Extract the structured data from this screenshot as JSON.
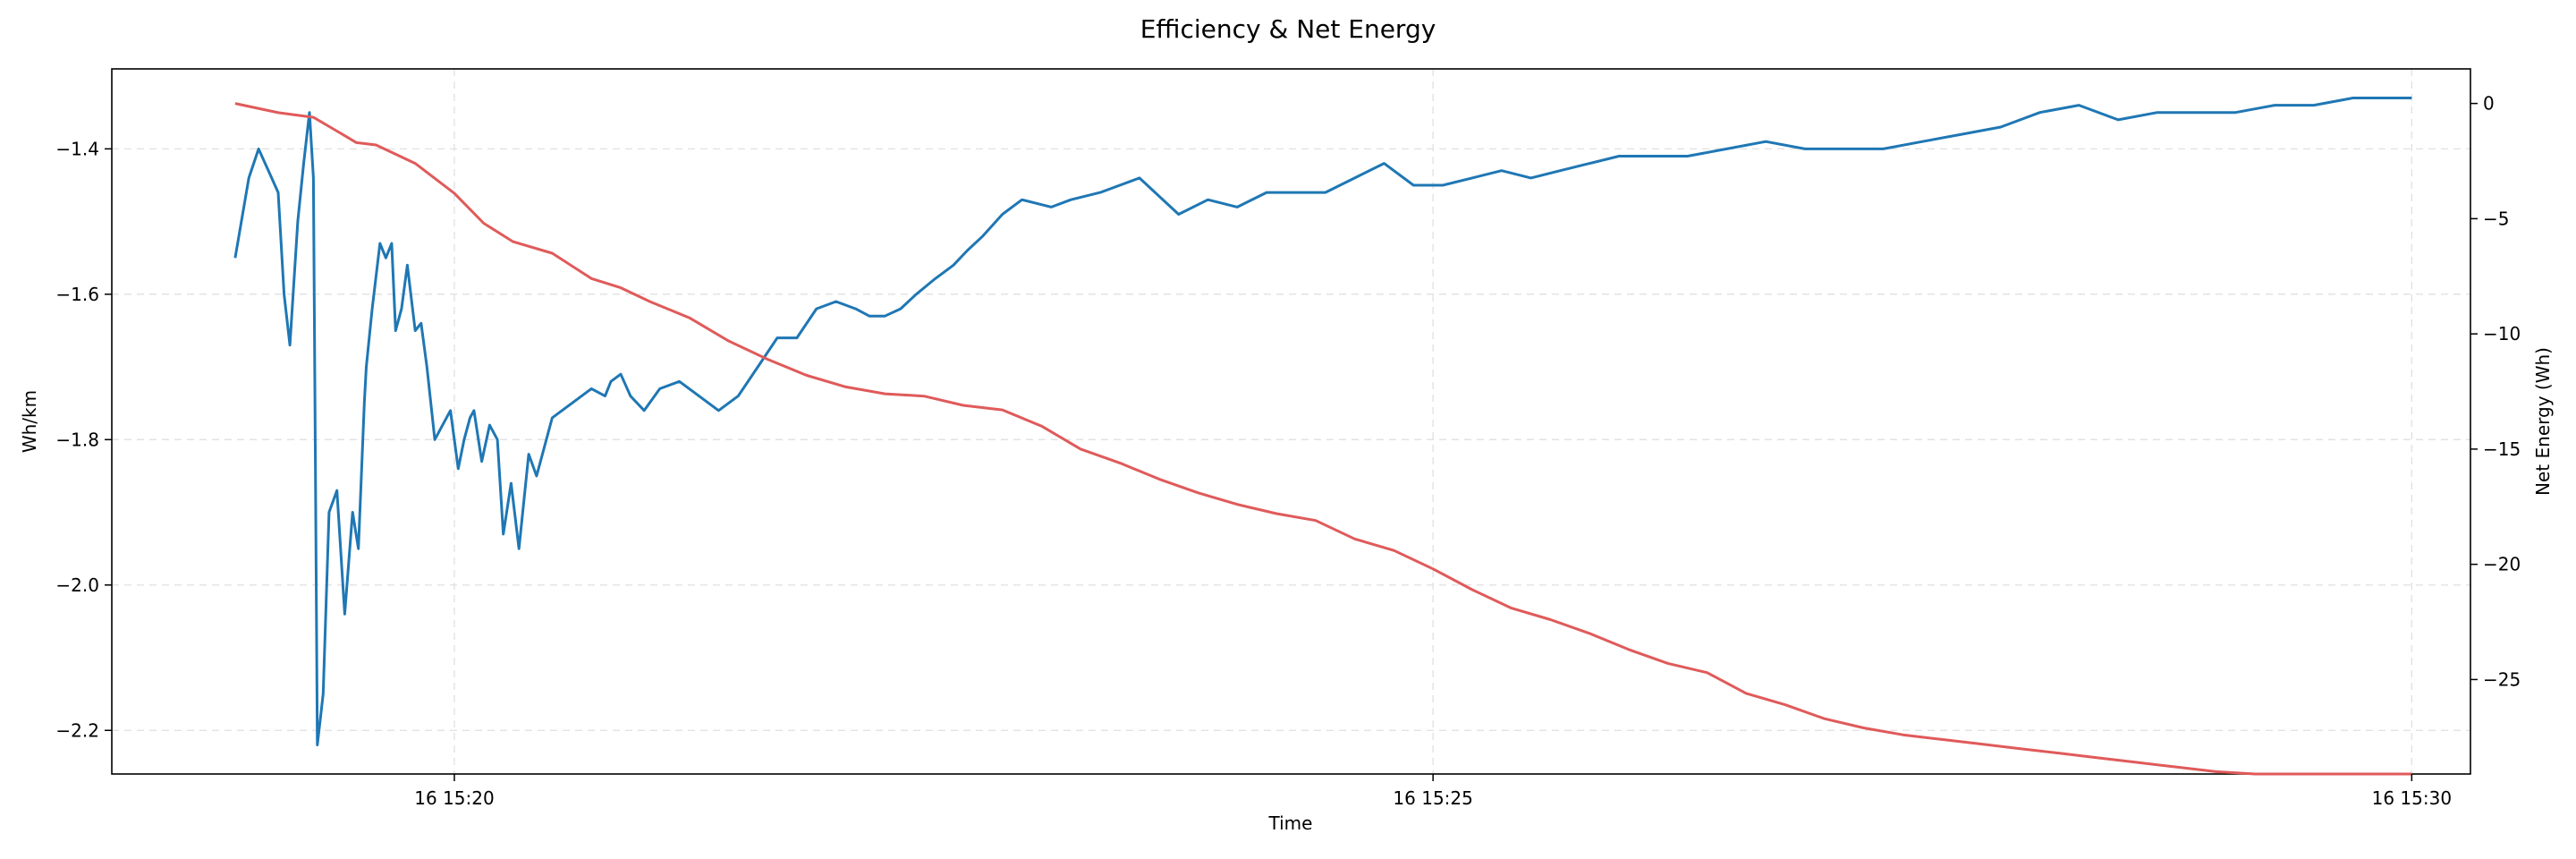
{
  "chart_data": {
    "type": "line",
    "title": "Efficiency & Net Energy",
    "xlabel": "Time",
    "ylabel_left": "Wh/km",
    "ylabel_right": "Net Energy (Wh)",
    "x_ticks": [
      "16 15:20",
      "16 15:25",
      "16 15:30"
    ],
    "x_tick_minutes": [
      0,
      5,
      10
    ],
    "xlim_minutes": [
      -1.75,
      10.3
    ],
    "y_left_ticks": [
      "−1.4",
      "−1.6",
      "−1.8",
      "−2.0",
      "−2.2"
    ],
    "y_left_tick_values": [
      -1.4,
      -1.6,
      -1.8,
      -2.0,
      -2.2
    ],
    "ylim_left": [
      -2.26,
      -1.29
    ],
    "y_right_ticks": [
      "0",
      "−5",
      "−10",
      "−15",
      "−20",
      "−25"
    ],
    "y_right_tick_values": [
      0,
      -5,
      -10,
      -15,
      -20,
      -25
    ],
    "ylim_right": [
      -29.1,
      1.5
    ],
    "grid": true,
    "colors": {
      "efficiency": "#1f77b4",
      "net_energy": "#e05a5a",
      "grid": "#e0e0e0"
    },
    "series": [
      {
        "axis": "left",
        "color": "#1f77b4",
        "x_minutes": [
          -1.12,
          -1.05,
          -1.0,
          -0.95,
          -0.9,
          -0.87,
          -0.84,
          -0.8,
          -0.77,
          -0.74,
          -0.72,
          -0.7,
          -0.67,
          -0.64,
          -0.6,
          -0.56,
          -0.52,
          -0.49,
          -0.46,
          -0.45,
          -0.42,
          -0.38,
          -0.35,
          -0.32,
          -0.3,
          -0.27,
          -0.24,
          -0.2,
          -0.17,
          -0.14,
          -0.1,
          -0.06,
          -0.02,
          0.02,
          0.05,
          0.08,
          0.1,
          0.14,
          0.18,
          0.22,
          0.25,
          0.29,
          0.33,
          0.38,
          0.42,
          0.5,
          0.6,
          0.7,
          0.77,
          0.8,
          0.85,
          0.9,
          0.97,
          1.05,
          1.15,
          1.25,
          1.35,
          1.45,
          1.55,
          1.65,
          1.75,
          1.85,
          1.95,
          2.05,
          2.12,
          2.2,
          2.28,
          2.36,
          2.45,
          2.55,
          2.62,
          2.7,
          2.8,
          2.9,
          3.05,
          3.15,
          3.3,
          3.5,
          3.7,
          3.85,
          4.0,
          4.15,
          4.3,
          4.45,
          4.6,
          4.75,
          4.9,
          5.05,
          5.2,
          5.35,
          5.5,
          5.65,
          5.8,
          5.95,
          6.1,
          6.3,
          6.5,
          6.7,
          6.9,
          7.1,
          7.3,
          7.5,
          7.7,
          7.9,
          8.1,
          8.3,
          8.5,
          8.7,
          8.9,
          9.1,
          9.3,
          9.5,
          9.7,
          9.9,
          10.0
        ],
        "values": [
          -1.55,
          -1.44,
          -1.4,
          -1.43,
          -1.46,
          -1.6,
          -1.67,
          -1.5,
          -1.42,
          -1.35,
          -1.44,
          -2.22,
          -2.15,
          -1.9,
          -1.87,
          -2.04,
          -1.9,
          -1.95,
          -1.75,
          -1.7,
          -1.62,
          -1.53,
          -1.55,
          -1.53,
          -1.65,
          -1.62,
          -1.56,
          -1.65,
          -1.64,
          -1.7,
          -1.8,
          -1.78,
          -1.76,
          -1.84,
          -1.8,
          -1.77,
          -1.76,
          -1.83,
          -1.78,
          -1.8,
          -1.93,
          -1.86,
          -1.95,
          -1.82,
          -1.85,
          -1.77,
          -1.75,
          -1.73,
          -1.74,
          -1.72,
          -1.71,
          -1.74,
          -1.76,
          -1.73,
          -1.72,
          -1.74,
          -1.76,
          -1.74,
          -1.7,
          -1.66,
          -1.66,
          -1.62,
          -1.61,
          -1.62,
          -1.63,
          -1.63,
          -1.62,
          -1.6,
          -1.58,
          -1.56,
          -1.54,
          -1.52,
          -1.49,
          -1.47,
          -1.48,
          -1.47,
          -1.46,
          -1.44,
          -1.49,
          -1.47,
          -1.48,
          -1.46,
          -1.46,
          -1.46,
          -1.44,
          -1.42,
          -1.45,
          -1.45,
          -1.44,
          -1.43,
          -1.44,
          -1.43,
          -1.42,
          -1.41,
          -1.41,
          -1.41,
          -1.4,
          -1.39,
          -1.4,
          -1.4,
          -1.4,
          -1.39,
          -1.38,
          -1.37,
          -1.35,
          -1.34,
          -1.36,
          -1.35,
          -1.35,
          -1.35,
          -1.34,
          -1.34,
          -1.33,
          -1.33,
          -1.33
        ]
      },
      {
        "axis": "right",
        "color": "#e05a5a",
        "x_minutes": [
          -1.12,
          -0.9,
          -0.72,
          -0.6,
          -0.5,
          -0.4,
          -0.2,
          0.0,
          0.15,
          0.3,
          0.5,
          0.7,
          0.85,
          1.0,
          1.2,
          1.4,
          1.6,
          1.8,
          2.0,
          2.2,
          2.4,
          2.6,
          2.8,
          3.0,
          3.2,
          3.4,
          3.6,
          3.8,
          4.0,
          4.2,
          4.4,
          4.6,
          4.8,
          5.0,
          5.2,
          5.4,
          5.6,
          5.8,
          6.0,
          6.2,
          6.4,
          6.6,
          6.8,
          7.0,
          7.2,
          7.4,
          7.6,
          7.8,
          8.0,
          8.2,
          8.4,
          8.6,
          8.8,
          9.0,
          9.2,
          9.4,
          9.6,
          9.8,
          10.0
        ],
        "values": [
          0.0,
          -0.4,
          -0.6,
          -1.2,
          -1.7,
          -1.8,
          -2.6,
          -3.9,
          -5.2,
          -6.0,
          -6.5,
          -7.6,
          -8.0,
          -8.6,
          -9.3,
          -10.3,
          -11.1,
          -11.8,
          -12.3,
          -12.6,
          -12.7,
          -13.1,
          -13.3,
          -14.0,
          -15.0,
          -15.6,
          -16.3,
          -16.9,
          -17.4,
          -17.8,
          -18.1,
          -18.9,
          -19.4,
          -20.2,
          -21.1,
          -21.9,
          -22.4,
          -23.0,
          -23.7,
          -24.3,
          -24.7,
          -25.6,
          -26.1,
          -26.7,
          -27.1,
          -27.4,
          -27.6,
          -27.8,
          -28.0,
          -28.2,
          -28.4,
          -28.6,
          -28.8,
          -29.0,
          -29.1,
          -29.1,
          -29.1,
          -29.1,
          -29.1
        ]
      }
    ]
  }
}
